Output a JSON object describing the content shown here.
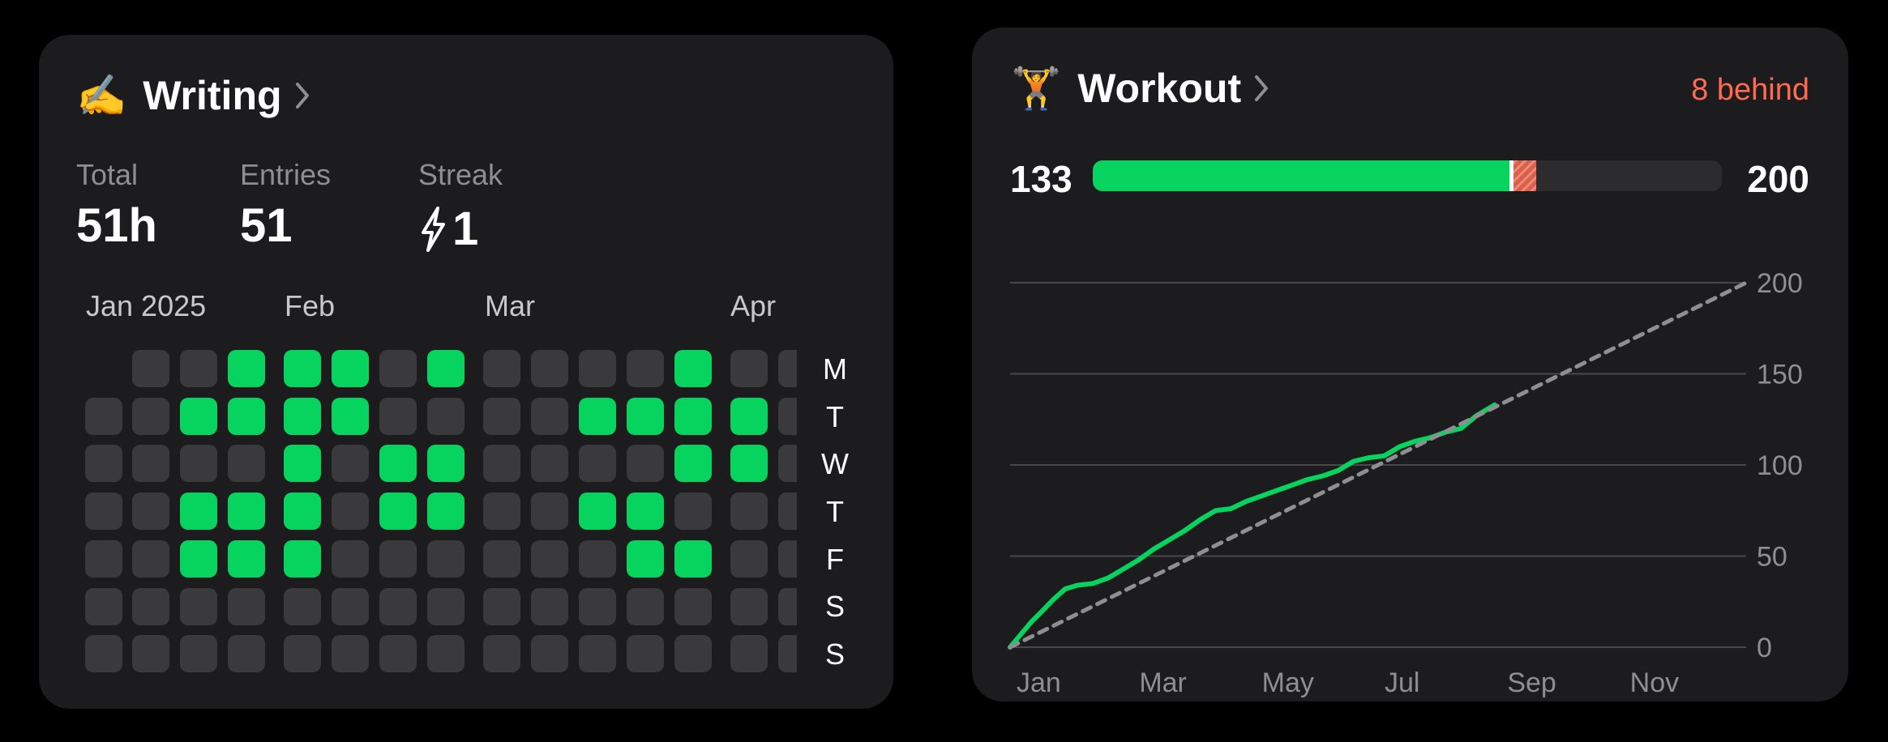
{
  "writing": {
    "emoji": "✍️",
    "title": "Writing",
    "stats": [
      {
        "label": "Total",
        "value": "51h"
      },
      {
        "label": "Entries",
        "value": "51"
      },
      {
        "label": "Streak",
        "value": "1",
        "icon": "bolt-icon"
      }
    ],
    "months": [
      "Jan 2025",
      "Feb",
      "Mar",
      "Apr"
    ],
    "day_labels": [
      "M",
      "T",
      "W",
      "T",
      "F",
      "S",
      "S"
    ],
    "heatmap": [
      [
        0,
        1,
        1,
        1,
        1,
        1,
        1
      ],
      [
        1,
        1,
        1,
        1,
        1,
        1,
        1
      ],
      [
        1,
        2,
        1,
        2,
        2,
        1,
        1
      ],
      [
        2,
        2,
        1,
        2,
        2,
        1,
        1
      ],
      [
        2,
        2,
        2,
        2,
        2,
        1,
        1
      ],
      [
        2,
        2,
        1,
        1,
        1,
        1,
        1
      ],
      [
        1,
        1,
        2,
        2,
        1,
        1,
        1
      ],
      [
        2,
        1,
        2,
        2,
        1,
        1,
        1
      ],
      [
        1,
        1,
        1,
        1,
        1,
        1,
        1
      ],
      [
        1,
        1,
        1,
        1,
        1,
        1,
        1
      ],
      [
        1,
        2,
        1,
        2,
        1,
        1,
        1
      ],
      [
        1,
        2,
        1,
        2,
        2,
        1,
        1
      ],
      [
        2,
        2,
        2,
        1,
        2,
        1,
        1
      ],
      [
        1,
        2,
        2,
        1,
        1,
        1,
        1
      ],
      [
        1,
        1,
        1,
        1,
        1,
        1,
        1
      ]
    ],
    "colors": {
      "active": "#06d45e",
      "inactive": "#3a3a3c"
    }
  },
  "workout": {
    "emoji": "🏋️",
    "title": "Workout",
    "behind_text": "8 behind",
    "progress": {
      "current": 133,
      "goal": 200,
      "expected": 141
    },
    "colors": {
      "accent": "#06d45e",
      "behind": "#ff6a50",
      "pace": "#8e8e93"
    }
  },
  "chart_data": {
    "type": "line",
    "x_ticks": [
      "Jan",
      "Mar",
      "May",
      "Jul",
      "Sep",
      "Nov"
    ],
    "y_ticks": [
      0,
      50,
      100,
      150,
      200
    ],
    "ylim": [
      0,
      200
    ],
    "xlim": [
      1,
      13
    ],
    "grid": true,
    "series": [
      {
        "style": "solid",
        "color": "#06d45e",
        "x": [
          1.0,
          1.1,
          1.2,
          1.35,
          1.5,
          1.7,
          1.9,
          2.1,
          2.35,
          2.6,
          2.85,
          3.1,
          3.35,
          3.6,
          3.85,
          4.1,
          4.35,
          4.6,
          4.85,
          5.1,
          5.35,
          5.6,
          5.85,
          6.1,
          6.35,
          6.6,
          6.85,
          7.1,
          7.35,
          7.6,
          7.85,
          8.1,
          8.35,
          8.6,
          8.9
        ],
        "y": [
          0,
          4,
          8,
          14,
          19,
          26,
          32,
          34,
          35,
          38,
          43,
          48,
          54,
          59,
          64,
          70,
          75,
          76,
          80,
          83,
          86,
          89,
          92,
          94,
          97,
          102,
          104,
          105,
          110,
          113,
          115,
          118,
          120,
          127,
          133
        ]
      },
      {
        "style": "dashed",
        "color": "#8e8e93",
        "x": [
          1,
          13
        ],
        "y": [
          0,
          200
        ]
      }
    ]
  }
}
